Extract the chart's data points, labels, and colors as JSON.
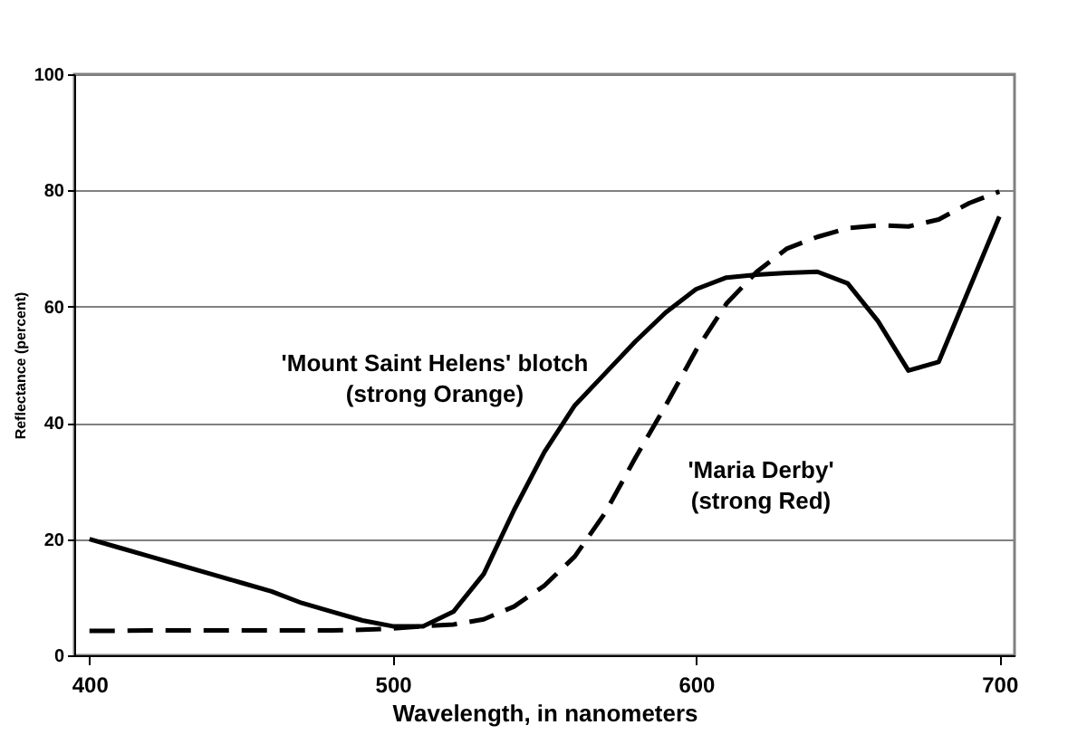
{
  "chart_data": {
    "type": "line",
    "xlabel": "Wavelength, in nanometers",
    "ylabel": "Reflectance (percent)",
    "x": [
      400,
      410,
      420,
      430,
      440,
      450,
      460,
      470,
      480,
      490,
      500,
      510,
      520,
      530,
      540,
      550,
      560,
      570,
      580,
      590,
      600,
      610,
      620,
      630,
      640,
      650,
      660,
      670,
      680,
      690,
      700
    ],
    "series": [
      {
        "name": "'Mount Saint Helens' blotch\n(strong Orange)",
        "color": "#000000",
        "line_style": "solid",
        "values": [
          20,
          18.5,
          17,
          15.5,
          14,
          12.5,
          11,
          9,
          7.5,
          6,
          5,
          5,
          7.5,
          14,
          25,
          35,
          43,
          48.5,
          54,
          59,
          63,
          65,
          65.5,
          65.8,
          66,
          64,
          57.5,
          49,
          50.5,
          63,
          75.5
        ]
      },
      {
        "name": "'Maria Derby'\n(strong  Red)",
        "color": "#000000",
        "line_style": "dashed",
        "values": [
          4.2,
          4.2,
          4.3,
          4.3,
          4.3,
          4.3,
          4.3,
          4.3,
          4.3,
          4.4,
          4.6,
          5,
          5.3,
          6.2,
          8.4,
          12,
          17,
          24.5,
          34,
          43,
          52.5,
          60.5,
          66,
          70,
          72,
          73.5,
          74,
          73.8,
          75,
          77.8,
          79.8
        ]
      }
    ],
    "xlim": [
      395,
      705
    ],
    "ylim": [
      0,
      100
    ],
    "xticks": [
      400,
      500,
      600,
      700
    ],
    "yticks": [
      0,
      20,
      40,
      60,
      80,
      100
    ],
    "grid": "y",
    "marker": "none"
  }
}
